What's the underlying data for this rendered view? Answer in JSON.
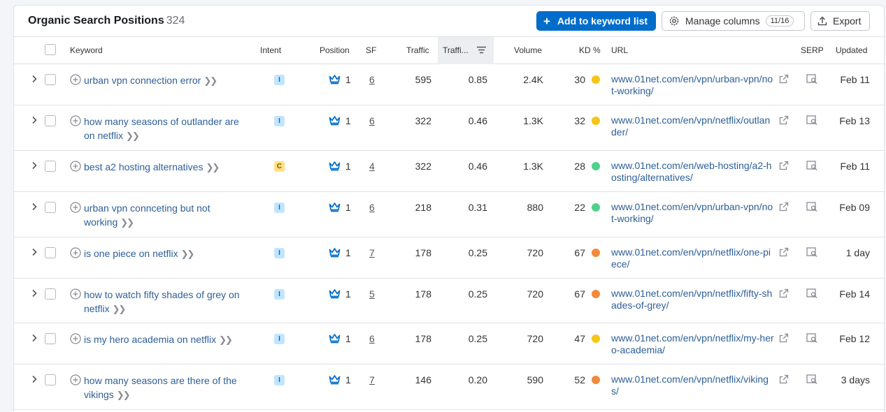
{
  "header": {
    "title": "Organic Search Positions",
    "count": "324",
    "add_button": "Add to keyword list",
    "manage_columns": "Manage columns",
    "columns_badge": "11/16",
    "export": "Export"
  },
  "columns": {
    "keyword": "Keyword",
    "intent": "Intent",
    "position": "Position",
    "sf": "SF",
    "traffic": "Traffic",
    "traffic_pct": "Traffi...",
    "volume": "Volume",
    "kd": "KD %",
    "url": "URL",
    "serp": "SERP",
    "updated": "Updated"
  },
  "colors": {
    "accent": "#006dca",
    "link": "#2d5f99",
    "kd_yellow": "#f5c518",
    "kd_green": "#4fd18b",
    "kd_orange": "#f08a3c"
  },
  "rows": [
    {
      "keyword": "urban vpn connection error",
      "intent": "I",
      "position": "1",
      "sf": "6",
      "traffic": "595",
      "traffic_pct": "0.85",
      "volume": "2.4K",
      "kd": "30",
      "kd_color": "#f5c518",
      "url": "www.01net.com/en/vpn/urban-vpn/not-working/",
      "updated": "Feb 11"
    },
    {
      "keyword": "how many seasons of outlander are on netflix",
      "intent": "I",
      "position": "1",
      "sf": "6",
      "traffic": "322",
      "traffic_pct": "0.46",
      "volume": "1.3K",
      "kd": "32",
      "kd_color": "#f5c518",
      "url": "www.01net.com/en/vpn/netflix/outlander/",
      "updated": "Feb 13"
    },
    {
      "keyword": "best a2 hosting alternatives",
      "intent": "C",
      "position": "1",
      "sf": "4",
      "traffic": "322",
      "traffic_pct": "0.46",
      "volume": "1.3K",
      "kd": "28",
      "kd_color": "#4fd18b",
      "url": "www.01net.com/en/web-hosting/a2-hosting/alternatives/",
      "updated": "Feb 11"
    },
    {
      "keyword": "urban vpn connceting but not working",
      "intent": "I",
      "position": "1",
      "sf": "6",
      "traffic": "218",
      "traffic_pct": "0.31",
      "volume": "880",
      "kd": "22",
      "kd_color": "#4fd18b",
      "url": "www.01net.com/en/vpn/urban-vpn/not-working/",
      "updated": "Feb 09"
    },
    {
      "keyword": "is one piece on netflix",
      "intent": "I",
      "position": "1",
      "sf": "7",
      "traffic": "178",
      "traffic_pct": "0.25",
      "volume": "720",
      "kd": "67",
      "kd_color": "#f08a3c",
      "url": "www.01net.com/en/vpn/netflix/one-piece/",
      "updated": "1 day"
    },
    {
      "keyword": "how to watch fifty shades of grey on netflix",
      "intent": "I",
      "position": "1",
      "sf": "5",
      "traffic": "178",
      "traffic_pct": "0.25",
      "volume": "720",
      "kd": "67",
      "kd_color": "#f08a3c",
      "url": "www.01net.com/en/vpn/netflix/fifty-shades-of-grey/",
      "updated": "Feb 14"
    },
    {
      "keyword": "is my hero academia on netflix",
      "intent": "I",
      "position": "1",
      "sf": "6",
      "traffic": "178",
      "traffic_pct": "0.25",
      "volume": "720",
      "kd": "47",
      "kd_color": "#f5c518",
      "url": "www.01net.com/en/vpn/netflix/my-hero-academia/",
      "updated": "Feb 12"
    },
    {
      "keyword": "how many seasons are there of the vikings",
      "intent": "I",
      "position": "1",
      "sf": "7",
      "traffic": "146",
      "traffic_pct": "0.20",
      "volume": "590",
      "kd": "52",
      "kd_color": "#f08a3c",
      "url": "www.01net.com/en/vpn/netflix/vikings/",
      "updated": "3 days"
    }
  ]
}
